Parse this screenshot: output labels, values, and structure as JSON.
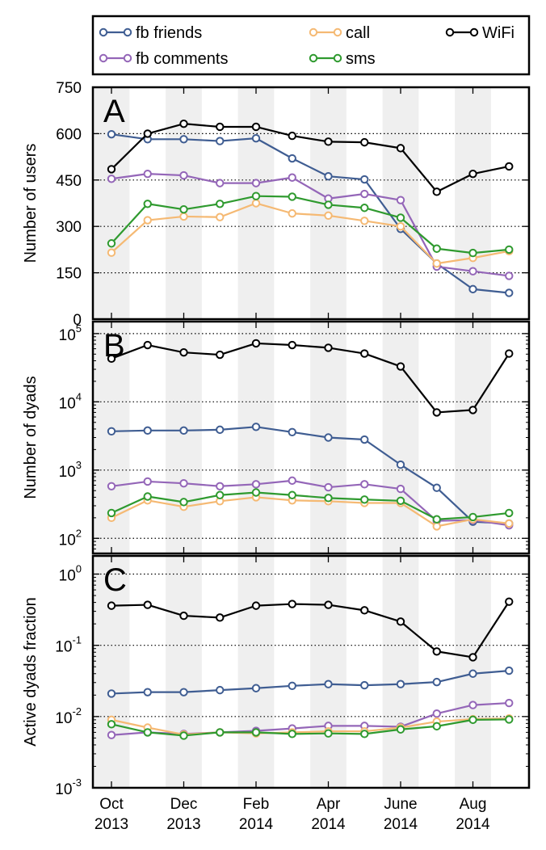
{
  "legend": {
    "placement": "top, outside panels",
    "entries": [
      "fb friends",
      "fb comments",
      "call",
      "sms",
      "WiFi"
    ]
  },
  "colors": {
    "fb friends": "#3f5d92",
    "fb comments": "#9466b8",
    "call": "#f5b973",
    "sms": "#2f9a2f",
    "WiFi": "#000000",
    "band": "#efefef"
  },
  "x_ticks": [
    {
      "i": 0,
      "month": "Oct",
      "year": "2013"
    },
    {
      "i": 2,
      "month": "Dec",
      "year": "2013"
    },
    {
      "i": 4,
      "month": "Feb",
      "year": "2014"
    },
    {
      "i": 6,
      "month": "Apr",
      "year": "2014"
    },
    {
      "i": 8,
      "month": "June",
      "year": "2014"
    },
    {
      "i": 10,
      "month": "Aug",
      "year": "2014"
    }
  ],
  "chart_data": [
    {
      "type": "line",
      "panel_label": "A",
      "ylabel": "Number of users",
      "yscale": "linear",
      "ylim": [
        0,
        750
      ],
      "yticks": [
        0,
        150,
        300,
        450,
        600,
        750
      ],
      "ytick_labels": [
        "0",
        "150",
        "300",
        "450",
        "600",
        "750"
      ],
      "gridlines": [
        150,
        300,
        450,
        600
      ],
      "x": [
        "2013-10",
        "2013-11",
        "2013-12",
        "2014-01",
        "2014-02",
        "2014-03",
        "2014-04",
        "2014-05",
        "2014-06",
        "2014-07",
        "2014-08",
        "2014-09"
      ],
      "series": [
        {
          "name": "fb friends",
          "values": [
            598,
            582,
            582,
            576,
            585,
            520,
            462,
            452,
            292,
            180,
            97,
            85
          ]
        },
        {
          "name": "fb comments",
          "values": [
            454,
            470,
            465,
            440,
            440,
            458,
            390,
            405,
            385,
            170,
            155,
            140
          ]
        },
        {
          "name": "call",
          "values": [
            215,
            320,
            332,
            330,
            375,
            342,
            335,
            318,
            300,
            180,
            198,
            220
          ]
        },
        {
          "name": "sms",
          "values": [
            245,
            373,
            355,
            373,
            398,
            396,
            370,
            360,
            328,
            228,
            214,
            225
          ]
        },
        {
          "name": "WiFi",
          "values": [
            485,
            600,
            632,
            622,
            622,
            593,
            574,
            572,
            553,
            412,
            470,
            494
          ]
        }
      ]
    },
    {
      "type": "line",
      "panel_label": "B",
      "ylabel": "Number of dyads",
      "yscale": "log",
      "ylim": [
        60,
        150000
      ],
      "yticks": [
        100,
        1000,
        10000,
        100000
      ],
      "ytick_labels": [
        [
          "10",
          "2"
        ],
        [
          "10",
          "3"
        ],
        [
          "10",
          "4"
        ],
        [
          "10",
          "5"
        ]
      ],
      "gridlines": [
        100,
        1000,
        10000,
        100000
      ],
      "x": [
        "2013-10",
        "2013-11",
        "2013-12",
        "2014-01",
        "2014-02",
        "2014-03",
        "2014-04",
        "2014-05",
        "2014-06",
        "2014-07",
        "2014-08",
        "2014-09"
      ],
      "series": [
        {
          "name": "fb friends",
          "values": [
            3700,
            3800,
            3800,
            3900,
            4300,
            3600,
            3000,
            2800,
            1200,
            550,
            175,
            165
          ]
        },
        {
          "name": "fb comments",
          "values": [
            580,
            680,
            640,
            580,
            620,
            700,
            560,
            620,
            530,
            180,
            185,
            155
          ]
        },
        {
          "name": "call",
          "values": [
            200,
            360,
            290,
            350,
            400,
            360,
            350,
            330,
            330,
            150,
            190,
            165
          ]
        },
        {
          "name": "sms",
          "values": [
            235,
            410,
            340,
            430,
            470,
            430,
            390,
            370,
            355,
            190,
            205,
            235
          ]
        },
        {
          "name": "WiFi",
          "values": [
            43000,
            68000,
            53000,
            49000,
            72000,
            68000,
            62000,
            51000,
            33000,
            7000,
            7600,
            51000
          ]
        }
      ]
    },
    {
      "type": "line",
      "panel_label": "C",
      "ylabel": "Active dyads fraction",
      "yscale": "log",
      "ylim": [
        0.001,
        1.8
      ],
      "yticks": [
        0.001,
        0.01,
        0.1,
        1
      ],
      "ytick_labels": [
        [
          "10",
          "-3"
        ],
        [
          "10",
          "-2"
        ],
        [
          "10",
          "-1"
        ],
        [
          "10",
          "0"
        ]
      ],
      "gridlines": [
        0.01,
        0.1,
        1
      ],
      "x": [
        "2013-10",
        "2013-11",
        "2013-12",
        "2014-01",
        "2014-02",
        "2014-03",
        "2014-04",
        "2014-05",
        "2014-06",
        "2014-07",
        "2014-08",
        "2014-09"
      ],
      "series": [
        {
          "name": "fb friends",
          "values": [
            0.021,
            0.022,
            0.022,
            0.0235,
            0.025,
            0.027,
            0.0285,
            0.0275,
            0.0285,
            0.0305,
            0.04,
            0.044
          ]
        },
        {
          "name": "fb comments",
          "values": [
            0.0055,
            0.006,
            0.0057,
            0.006,
            0.0063,
            0.0068,
            0.0074,
            0.0074,
            0.0072,
            0.011,
            0.0145,
            0.0155
          ]
        },
        {
          "name": "call",
          "values": [
            0.009,
            0.007,
            0.0056,
            0.006,
            0.0058,
            0.006,
            0.0062,
            0.0062,
            0.007,
            0.0085,
            0.0092,
            0.0094
          ]
        },
        {
          "name": "sms",
          "values": [
            0.0078,
            0.006,
            0.0054,
            0.006,
            0.006,
            0.0057,
            0.0058,
            0.0057,
            0.0066,
            0.0073,
            0.009,
            0.0091
          ]
        },
        {
          "name": "WiFi",
          "values": [
            0.36,
            0.37,
            0.26,
            0.245,
            0.36,
            0.38,
            0.37,
            0.31,
            0.215,
            0.082,
            0.068,
            0.41
          ]
        }
      ]
    }
  ]
}
